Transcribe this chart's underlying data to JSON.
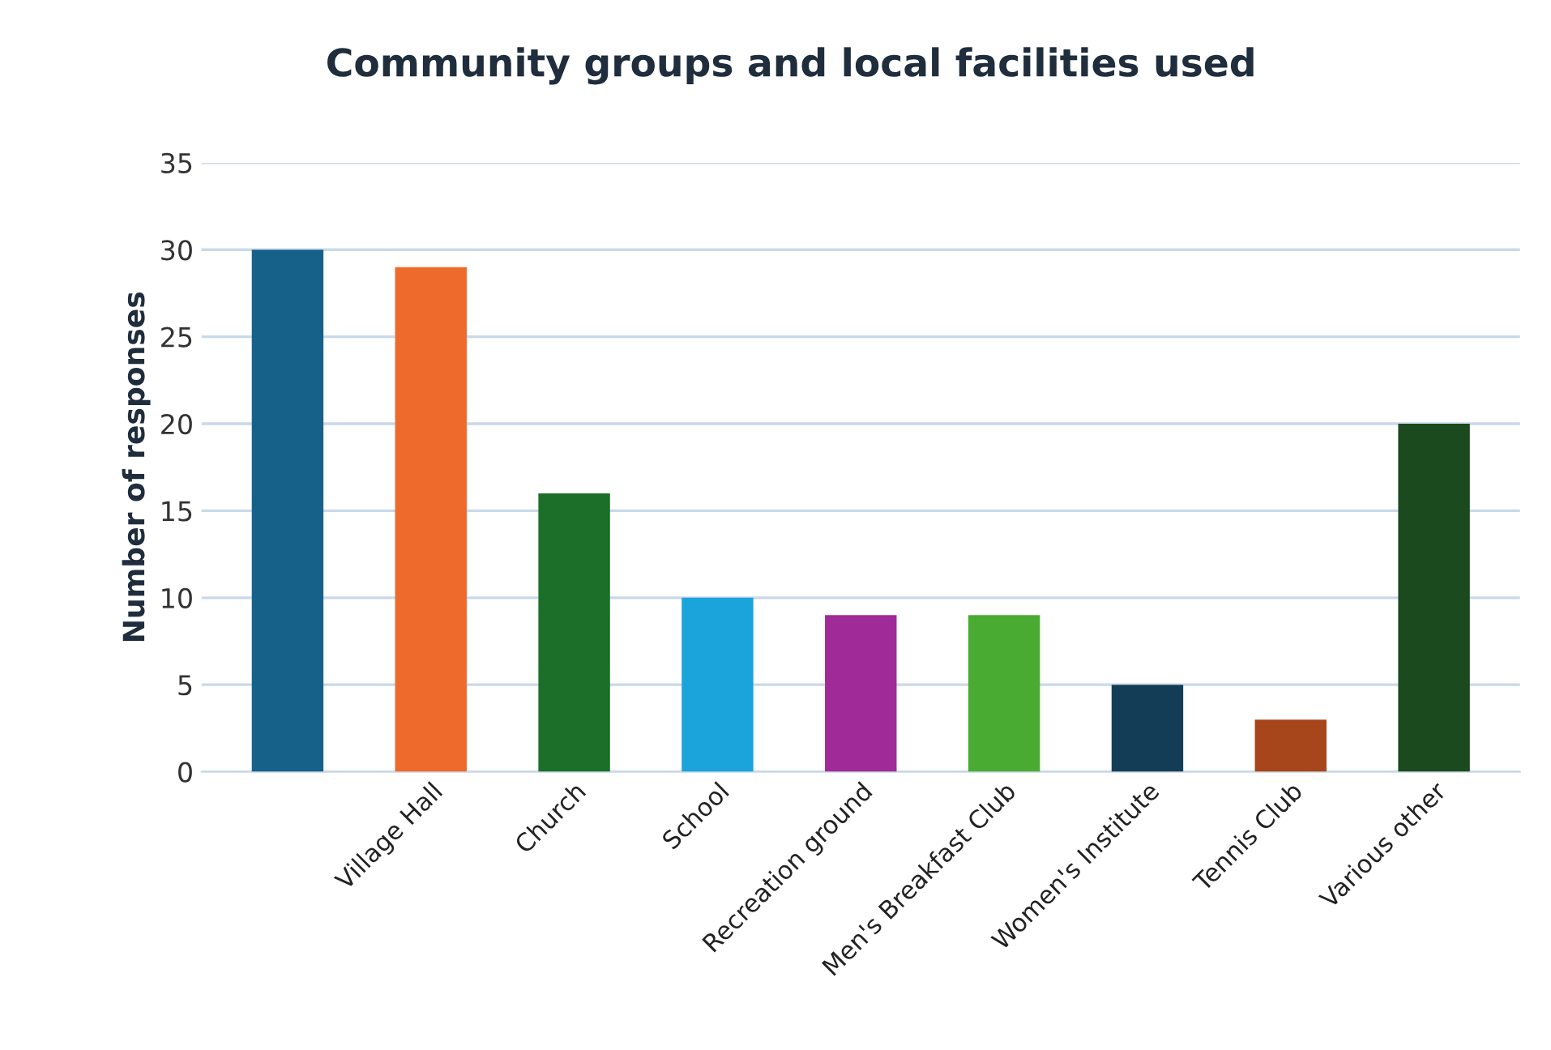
{
  "chart_data": {
    "type": "bar",
    "title": "Community groups and local facilities used",
    "ylabel": "Number of responses",
    "categories": [
      null,
      "Village Hall",
      "Church",
      "School",
      "Recreation ground",
      "Men's Breakfast Club",
      "Women's Institute",
      "Tennis Club",
      "Various other"
    ],
    "values": [
      30,
      29,
      16,
      10,
      9,
      9,
      5,
      3,
      20
    ],
    "colors": [
      "#16618a",
      "#ee6a2c",
      "#1b6f29",
      "#1ba3dc",
      "#a02a98",
      "#4aab33",
      "#133d57",
      "#a6461a",
      "#1b4a1f"
    ],
    "ylim": [
      0,
      35
    ],
    "yticks": [
      0,
      5,
      10,
      15,
      20,
      25,
      30,
      35
    ],
    "grid": "y",
    "legend": false
  }
}
